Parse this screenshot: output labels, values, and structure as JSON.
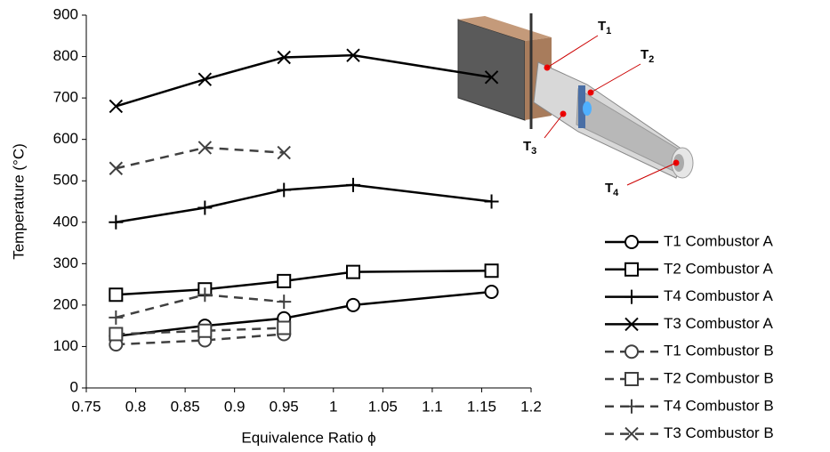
{
  "chart_data": {
    "type": "line",
    "x_label": "Equivalence Ratio ϕ",
    "y_label": "Temperature (°C)",
    "xlim": [
      0.75,
      1.2
    ],
    "xticks": [
      0.75,
      0.8,
      0.85,
      0.9,
      0.95,
      1,
      1.05,
      1.1,
      1.15,
      1.2
    ],
    "ylim": [
      0,
      900
    ],
    "yticks": [
      0,
      100,
      200,
      300,
      400,
      500,
      600,
      700,
      800,
      900
    ],
    "grid": false,
    "series": [
      {
        "name": "T1 Combustor A",
        "color": "#000000",
        "marker": "circle",
        "dashed": false,
        "x": [
          0.78,
          0.87,
          0.95,
          1.02,
          1.16
        ],
        "values": [
          125,
          150,
          168,
          200,
          232
        ]
      },
      {
        "name": "T2 Combustor A",
        "color": "#000000",
        "marker": "square",
        "dashed": false,
        "x": [
          0.78,
          0.87,
          0.95,
          1.02,
          1.16
        ],
        "values": [
          225,
          238,
          258,
          280,
          283
        ]
      },
      {
        "name": "T4 Combustor A",
        "color": "#000000",
        "marker": "plus",
        "dashed": false,
        "x": [
          0.78,
          0.87,
          0.95,
          1.02,
          1.16
        ],
        "values": [
          400,
          435,
          478,
          490,
          450
        ]
      },
      {
        "name": "T3 Combustor A",
        "color": "#000000",
        "marker": "cross",
        "dashed": false,
        "x": [
          0.78,
          0.87,
          0.95,
          1.02,
          1.16
        ],
        "values": [
          680,
          745,
          798,
          803,
          750
        ]
      },
      {
        "name": "T1 Combustor B",
        "color": "#404040",
        "marker": "circle",
        "dashed": true,
        "x": [
          0.78,
          0.87,
          0.95
        ],
        "values": [
          105,
          115,
          130
        ]
      },
      {
        "name": "T2 Combustor B",
        "color": "#404040",
        "marker": "square",
        "dashed": true,
        "x": [
          0.78,
          0.87,
          0.95
        ],
        "values": [
          130,
          138,
          145
        ]
      },
      {
        "name": "T4 Combustor B",
        "color": "#404040",
        "marker": "plus",
        "dashed": true,
        "x": [
          0.78,
          0.87,
          0.95
        ],
        "values": [
          170,
          225,
          208
        ]
      },
      {
        "name": "T3 Combustor B",
        "color": "#404040",
        "marker": "cross",
        "dashed": true,
        "x": [
          0.78,
          0.87,
          0.95
        ],
        "values": [
          530,
          580,
          568
        ]
      }
    ],
    "annotations": [
      {
        "base": "T",
        "sub": "1"
      },
      {
        "base": "T",
        "sub": "2"
      },
      {
        "base": "T",
        "sub": "3"
      },
      {
        "base": "T",
        "sub": "4"
      }
    ]
  }
}
